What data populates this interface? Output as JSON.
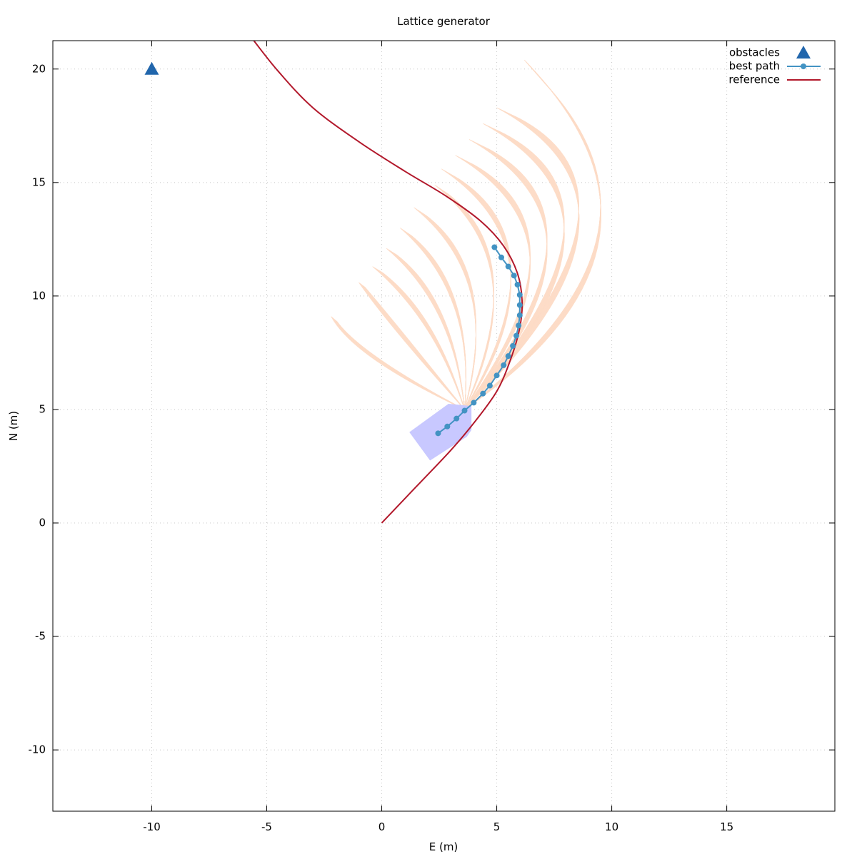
{
  "chart_data": {
    "type": "line",
    "title": "Lattice generator",
    "xlabel": "E (m)",
    "ylabel": "N (m)",
    "xlim": [
      -14.3,
      19.7
    ],
    "ylim": [
      -12.7,
      21.25
    ],
    "xticks": [
      -10,
      -5,
      0,
      5,
      10,
      15
    ],
    "yticks": [
      -10,
      -5,
      0,
      5,
      10,
      15,
      20
    ],
    "grid": true,
    "legend_position": "top-right",
    "colors": {
      "obstacles": "#2166ac",
      "best_path": "#4393c3",
      "reference": "#b2182b",
      "lattice": "#fddbc7",
      "vehicle": "#c8c8ff"
    },
    "legend": {
      "obstacles": "obstacles",
      "best_path": "best path",
      "reference": "reference"
    },
    "obstacles": [
      {
        "x": -10,
        "y": 20
      }
    ],
    "reference": [
      {
        "x": 0.0,
        "y": 0.0
      },
      {
        "x": 1.5,
        "y": 1.6
      },
      {
        "x": 3.0,
        "y": 3.2
      },
      {
        "x": 4.0,
        "y": 4.4
      },
      {
        "x": 5.0,
        "y": 5.8
      },
      {
        "x": 5.6,
        "y": 7.2
      },
      {
        "x": 6.0,
        "y": 8.6
      },
      {
        "x": 6.1,
        "y": 9.8
      },
      {
        "x": 5.9,
        "y": 11.0
      },
      {
        "x": 5.3,
        "y": 12.2
      },
      {
        "x": 4.3,
        "y": 13.3
      },
      {
        "x": 2.8,
        "y": 14.4
      },
      {
        "x": 1.0,
        "y": 15.5
      },
      {
        "x": -1.0,
        "y": 16.8
      },
      {
        "x": -3.0,
        "y": 18.3
      },
      {
        "x": -4.5,
        "y": 19.9
      },
      {
        "x": -5.6,
        "y": 21.3
      }
    ],
    "best_path": [
      {
        "x": 2.45,
        "y": 3.95
      },
      {
        "x": 2.85,
        "y": 4.25
      },
      {
        "x": 3.25,
        "y": 4.6
      },
      {
        "x": 3.6,
        "y": 4.95
      },
      {
        "x": 4.0,
        "y": 5.3
      },
      {
        "x": 4.4,
        "y": 5.7
      },
      {
        "x": 4.7,
        "y": 6.05
      },
      {
        "x": 5.0,
        "y": 6.5
      },
      {
        "x": 5.3,
        "y": 6.95
      },
      {
        "x": 5.5,
        "y": 7.35
      },
      {
        "x": 5.7,
        "y": 7.8
      },
      {
        "x": 5.85,
        "y": 8.25
      },
      {
        "x": 5.95,
        "y": 8.7
      },
      {
        "x": 6.0,
        "y": 9.15
      },
      {
        "x": 6.0,
        "y": 9.6
      },
      {
        "x": 6.0,
        "y": 10.05
      },
      {
        "x": 5.9,
        "y": 10.5
      },
      {
        "x": 5.75,
        "y": 10.9
      },
      {
        "x": 5.5,
        "y": 11.3
      },
      {
        "x": 5.2,
        "y": 11.7
      },
      {
        "x": 4.9,
        "y": 12.15
      }
    ],
    "vehicle_polygon": [
      {
        "x": 1.2,
        "y": 4.0
      },
      {
        "x": 2.9,
        "y": 5.25
      },
      {
        "x": 3.9,
        "y": 5.15
      },
      {
        "x": 3.9,
        "y": 4.1
      },
      {
        "x": 3.7,
        "y": 3.8
      },
      {
        "x": 2.1,
        "y": 2.75
      }
    ],
    "lattice_fans": [
      {
        "start": {
          "x": 3.6,
          "y": 5.0
        },
        "tip": {
          "x": -0.5,
          "y": 7.6
        },
        "end": {
          "x": -2.2,
          "y": 9.1
        },
        "count": 18
      },
      {
        "start": {
          "x": 3.6,
          "y": 5.0
        },
        "tip": {
          "x": 0.8,
          "y": 9.2
        },
        "end": {
          "x": -1.0,
          "y": 10.6
        },
        "count": 18
      },
      {
        "start": {
          "x": 3.6,
          "y": 5.0
        },
        "tip": {
          "x": 2.5,
          "y": 9.5
        },
        "end": {
          "x": -0.4,
          "y": 11.3
        },
        "count": 18
      },
      {
        "start": {
          "x": 3.6,
          "y": 5.0
        },
        "tip": {
          "x": 3.2,
          "y": 10.2
        },
        "end": {
          "x": 0.2,
          "y": 12.1
        },
        "count": 18
      },
      {
        "start": {
          "x": 3.6,
          "y": 5.0
        },
        "tip": {
          "x": 4.0,
          "y": 10.8
        },
        "end": {
          "x": 0.8,
          "y": 13.0
        },
        "count": 18
      },
      {
        "start": {
          "x": 3.6,
          "y": 5.0
        },
        "tip": {
          "x": 5.0,
          "y": 11.5
        },
        "end": {
          "x": 1.4,
          "y": 13.9
        },
        "count": 18
      },
      {
        "start": {
          "x": 3.6,
          "y": 5.0
        },
        "tip": {
          "x": 6.2,
          "y": 12.2
        },
        "end": {
          "x": 2.3,
          "y": 14.9
        },
        "count": 18
      },
      {
        "start": {
          "x": 3.6,
          "y": 5.0
        },
        "tip": {
          "x": 7.4,
          "y": 12.8
        },
        "end": {
          "x": 2.6,
          "y": 15.6
        },
        "count": 18
      },
      {
        "start": {
          "x": 3.6,
          "y": 5.0
        },
        "tip": {
          "x": 8.6,
          "y": 13.4
        },
        "end": {
          "x": 3.2,
          "y": 16.2
        },
        "count": 18
      },
      {
        "start": {
          "x": 3.6,
          "y": 5.0
        },
        "tip": {
          "x": 9.6,
          "y": 14.0
        },
        "end": {
          "x": 3.8,
          "y": 16.9
        },
        "count": 18
      },
      {
        "start": {
          "x": 3.6,
          "y": 5.0
        },
        "tip": {
          "x": 10.6,
          "y": 14.6
        },
        "end": {
          "x": 4.4,
          "y": 17.6
        },
        "count": 20
      },
      {
        "start": {
          "x": 3.6,
          "y": 5.0
        },
        "tip": {
          "x": 11.4,
          "y": 15.2
        },
        "end": {
          "x": 5.0,
          "y": 18.3
        },
        "count": 22
      },
      {
        "start": {
          "x": 3.6,
          "y": 5.0
        },
        "tip": {
          "x": 12.4,
          "y": 13.2
        },
        "end": {
          "x": 6.2,
          "y": 20.4
        },
        "count": 26
      }
    ]
  }
}
